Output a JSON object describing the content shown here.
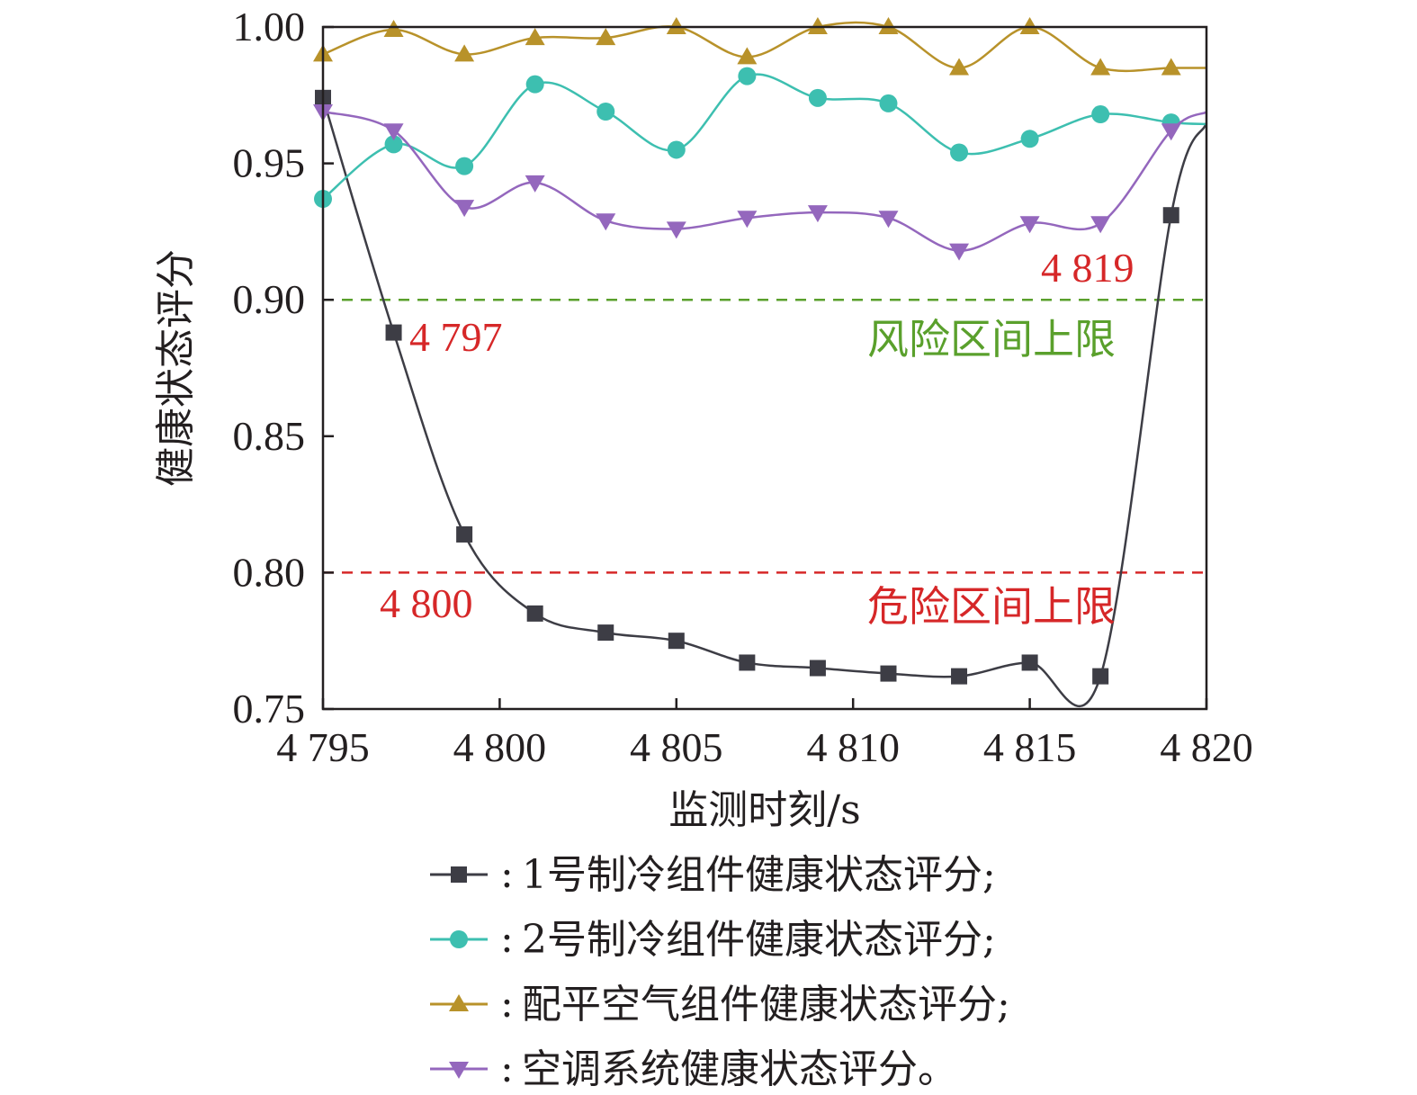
{
  "chart_data": {
    "type": "line",
    "xlabel": "监测时刻/s",
    "ylabel": "健康状态评分",
    "xlim": [
      4795,
      4820
    ],
    "ylim": [
      0.75,
      1.0
    ],
    "x_ticks": [
      4795,
      4800,
      4805,
      4810,
      4815,
      4820
    ],
    "x_tick_labels": [
      "4 795",
      "4 800",
      "4 805",
      "4 810",
      "4 815",
      "4 820"
    ],
    "y_ticks": [
      0.75,
      0.8,
      0.85,
      0.9,
      0.95,
      1.0
    ],
    "y_tick_labels": [
      "0.75",
      "0.80",
      "0.85",
      "0.90",
      "0.95",
      "1.00"
    ],
    "x": [
      4795,
      4797,
      4799,
      4801,
      4803,
      4805,
      4807,
      4809,
      4811,
      4813,
      4815,
      4817,
      4819
    ],
    "series": [
      {
        "name": "1号制冷组件健康状态评分;",
        "color": "#3d3d45",
        "marker": "square",
        "values": [
          0.974,
          0.888,
          0.814,
          0.785,
          0.778,
          0.775,
          0.767,
          0.765,
          0.763,
          0.762,
          0.767,
          0.762,
          0.931
        ]
      },
      {
        "name": "2号制冷组件健康状态评分;",
        "color": "#3dbfb0",
        "marker": "circle",
        "values": [
          0.937,
          0.957,
          0.949,
          0.979,
          0.969,
          0.955,
          0.982,
          0.974,
          0.972,
          0.954,
          0.959,
          0.968,
          0.965
        ]
      },
      {
        "name": "配平空气组件健康状态评分;",
        "color": "#b8922a",
        "marker": "triangle-up",
        "values": [
          0.99,
          0.999,
          0.99,
          0.996,
          0.996,
          1.0,
          0.989,
          1.0,
          1.0,
          0.985,
          1.0,
          0.985,
          0.985
        ]
      },
      {
        "name": "空调系统健康状态评分。",
        "color": "#9467bd",
        "marker": "triangle-down",
        "values": [
          0.969,
          0.962,
          0.934,
          0.943,
          0.929,
          0.926,
          0.93,
          0.932,
          0.93,
          0.918,
          0.928,
          0.928,
          0.962
        ]
      }
    ],
    "thresholds": [
      {
        "label": "风险区间上限",
        "value": 0.9,
        "color": "#5aa02c"
      },
      {
        "label": "危险区间上限",
        "value": 0.8,
        "color": "#d62728"
      }
    ],
    "annotations": [
      {
        "text": "4 797",
        "color": "#d62728"
      },
      {
        "text": "4 800",
        "color": "#d62728"
      },
      {
        "text": "4 819",
        "color": "#d62728"
      }
    ],
    "legend_prefix": ":",
    "legend_position": "bottom",
    "grid": false
  }
}
